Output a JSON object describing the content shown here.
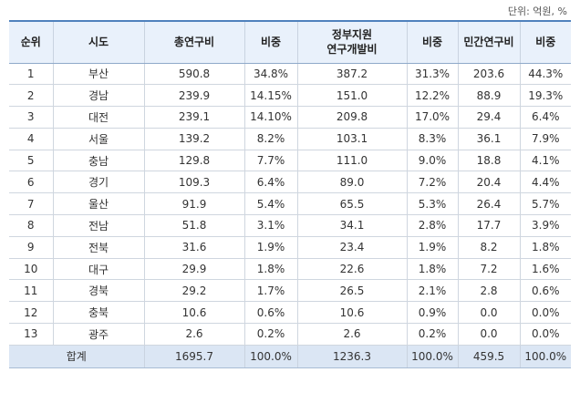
{
  "unit_note": "단위: 억원, %",
  "headers": {
    "rank": "순위",
    "region": "시도",
    "total": "총연구비",
    "total_share": "비중",
    "gov_line1": "정부지원",
    "gov_line2": "연구개발비",
    "gov_share": "비중",
    "private": "민간연구비",
    "private_share": "비중"
  },
  "rows": [
    [
      "1",
      "부산",
      "590.8",
      "34.8%",
      "387.2",
      "31.3%",
      "203.6",
      "44.3%"
    ],
    [
      "2",
      "경남",
      "239.9",
      "14.15%",
      "151.0",
      "12.2%",
      "88.9",
      "19.3%"
    ],
    [
      "3",
      "대전",
      "239.1",
      "14.10%",
      "209.8",
      "17.0%",
      "29.4",
      "6.4%"
    ],
    [
      "4",
      "서울",
      "139.2",
      "8.2%",
      "103.1",
      "8.3%",
      "36.1",
      "7.9%"
    ],
    [
      "5",
      "충남",
      "129.8",
      "7.7%",
      "111.0",
      "9.0%",
      "18.8",
      "4.1%"
    ],
    [
      "6",
      "경기",
      "109.3",
      "6.4%",
      "89.0",
      "7.2%",
      "20.4",
      "4.4%"
    ],
    [
      "7",
      "울산",
      "91.9",
      "5.4%",
      "65.5",
      "5.3%",
      "26.4",
      "5.7%"
    ],
    [
      "8",
      "전남",
      "51.8",
      "3.1%",
      "34.1",
      "2.8%",
      "17.7",
      "3.9%"
    ],
    [
      "9",
      "전북",
      "31.6",
      "1.9%",
      "23.4",
      "1.9%",
      "8.2",
      "1.8%"
    ],
    [
      "10",
      "대구",
      "29.9",
      "1.8%",
      "22.6",
      "1.8%",
      "7.2",
      "1.6%"
    ],
    [
      "11",
      "경북",
      "29.2",
      "1.7%",
      "26.5",
      "2.1%",
      "2.8",
      "0.6%"
    ],
    [
      "12",
      "충북",
      "10.6",
      "0.6%",
      "10.6",
      "0.9%",
      "0.0",
      "0.0%"
    ],
    [
      "13",
      "광주",
      "2.6",
      "0.2%",
      "2.6",
      "0.2%",
      "0.0",
      "0.0%"
    ]
  ],
  "total_row": {
    "label": "합계",
    "total": "1695.7",
    "total_share": "100.0%",
    "gov": "1236.3",
    "gov_share": "100.0%",
    "private": "459.5",
    "private_share": "100.0%"
  },
  "colors": {
    "header_bg": "#e9f1fb",
    "header_top_border": "#4f81bd",
    "total_row_bg": "#dbe6f4"
  }
}
